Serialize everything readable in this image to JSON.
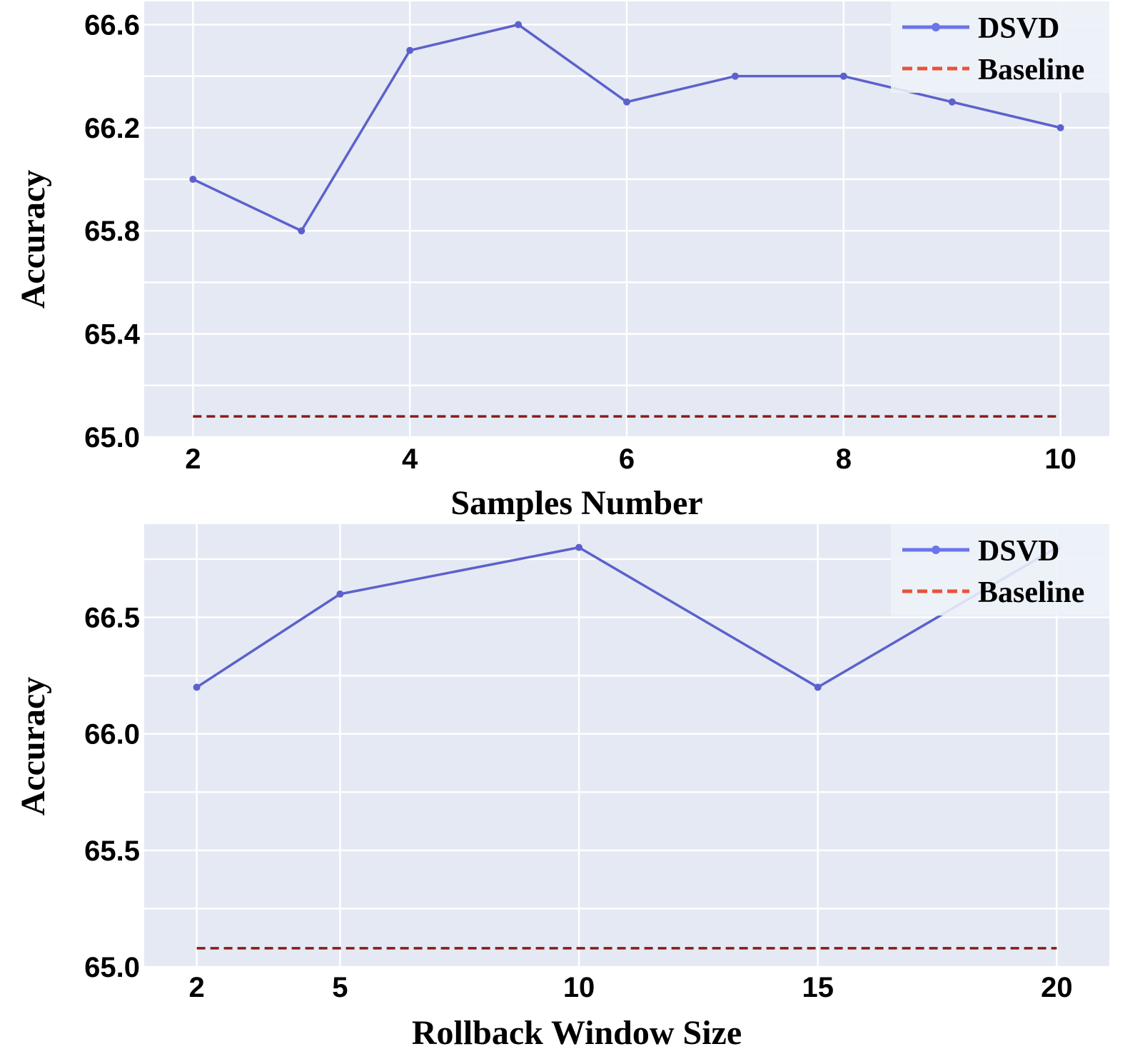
{
  "chart_data": [
    {
      "type": "line",
      "xlabel": "Samples Number",
      "ylabel": "Accuracy",
      "x": [
        2,
        3,
        4,
        5,
        6,
        7,
        8,
        9,
        10
      ],
      "xticks": [
        "2",
        "4",
        "6",
        "8",
        "10"
      ],
      "xlim": [
        1.55,
        10.45
      ],
      "yticks": [
        "65.0",
        "65.4",
        "65.8",
        "66.2",
        "66.6"
      ],
      "ylim": [
        65.0,
        66.69
      ],
      "grid": true,
      "legend": "top-right",
      "series": [
        {
          "name": "DSVD",
          "values": [
            66.0,
            65.8,
            66.5,
            66.6,
            66.3,
            66.4,
            66.4,
            66.3,
            66.2
          ],
          "color": "#6b74ea",
          "style": "solid-markers"
        },
        {
          "name": "Baseline",
          "values": [
            65.08,
            65.08,
            65.08,
            65.08,
            65.08,
            65.08,
            65.08,
            65.08,
            65.08
          ],
          "color": "#e8533a",
          "style": "dashed"
        }
      ]
    },
    {
      "type": "line",
      "xlabel": "Rollback Window Size",
      "ylabel": "Accuracy",
      "x": [
        2,
        5,
        10,
        15,
        20
      ],
      "xticks": [
        "2",
        "5",
        "10",
        "15",
        "20"
      ],
      "xlim": [
        0.9,
        21.1
      ],
      "yticks": [
        "65.0",
        "65.5",
        "66.0",
        "66.5"
      ],
      "ylim": [
        65.0,
        66.9
      ],
      "grid": true,
      "legend": "top-right",
      "series": [
        {
          "name": "DSVD",
          "values": [
            66.2,
            66.6,
            66.8,
            66.2,
            66.8
          ],
          "color": "#6b74ea",
          "style": "solid-markers"
        },
        {
          "name": "Baseline",
          "values": [
            65.08,
            65.08,
            65.08,
            65.08,
            65.08
          ],
          "color": "#e8533a",
          "style": "dashed"
        }
      ]
    }
  ]
}
